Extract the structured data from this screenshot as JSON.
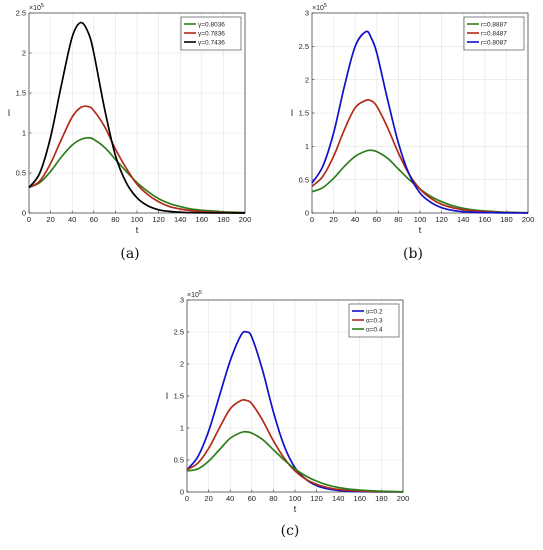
{
  "chart_data": [
    {
      "type": "line",
      "panel_label": "(a)",
      "xlabel": "t",
      "ylabel": "I",
      "xlim": [
        0,
        200
      ],
      "ylim": [
        0,
        2.5
      ],
      "x_ticks": [
        "0",
        "20",
        "40",
        "60",
        "80",
        "100",
        "120",
        "140",
        "160",
        "180",
        "200"
      ],
      "y_ticks": [
        "0",
        "0.5",
        "1",
        "1.5",
        "2",
        "2.5"
      ],
      "y_multiplier": "×10",
      "y_multiplier_exp": "5",
      "grid": true,
      "legend": "top-right",
      "x": [
        0,
        10,
        20,
        30,
        40,
        48,
        55,
        60,
        70,
        80,
        90,
        100,
        110,
        120,
        130,
        140,
        150,
        160,
        170,
        180,
        190,
        200
      ],
      "series": [
        {
          "name": "γ=0.8036",
          "color": "#2e7d1a",
          "values": [
            0.32,
            0.38,
            0.52,
            0.7,
            0.85,
            0.92,
            0.94,
            0.92,
            0.82,
            0.67,
            0.52,
            0.38,
            0.27,
            0.18,
            0.12,
            0.08,
            0.05,
            0.035,
            0.025,
            0.015,
            0.01,
            0.005
          ]
        },
        {
          "name": "γ=0.7836",
          "color": "#b22a18",
          "values": [
            0.32,
            0.4,
            0.62,
            0.92,
            1.2,
            1.32,
            1.33,
            1.28,
            1.08,
            0.8,
            0.56,
            0.36,
            0.23,
            0.14,
            0.08,
            0.05,
            0.03,
            0.018,
            0.01,
            0.006,
            0.003,
            0.002
          ]
        },
        {
          "name": "γ=0.7436",
          "color": "#000000",
          "values": [
            0.32,
            0.5,
            0.95,
            1.6,
            2.2,
            2.38,
            2.25,
            2.0,
            1.3,
            0.72,
            0.38,
            0.19,
            0.09,
            0.04,
            0.02,
            0.01,
            0.005,
            0.003,
            0.002,
            0.001,
            0.0,
            0.0
          ]
        }
      ]
    },
    {
      "type": "line",
      "panel_label": "(b)",
      "xlabel": "t",
      "ylabel": "I",
      "xlim": [
        0,
        200
      ],
      "ylim": [
        0,
        3
      ],
      "x_ticks": [
        "0",
        "20",
        "40",
        "60",
        "80",
        "100",
        "120",
        "140",
        "160",
        "180",
        "200"
      ],
      "y_ticks": [
        "0",
        "0.5",
        "1",
        "1.5",
        "2",
        "2.5",
        "3"
      ],
      "y_multiplier": "×10",
      "y_multiplier_exp": "5",
      "grid": true,
      "legend": "top-right",
      "x": [
        0,
        10,
        20,
        30,
        40,
        50,
        55,
        60,
        70,
        80,
        90,
        100,
        110,
        120,
        130,
        140,
        150,
        160,
        170,
        180,
        190,
        200
      ],
      "series": [
        {
          "name": "r=0.8887",
          "color": "#2e7d1a",
          "values": [
            0.32,
            0.38,
            0.52,
            0.7,
            0.85,
            0.93,
            0.94,
            0.92,
            0.82,
            0.66,
            0.5,
            0.36,
            0.25,
            0.17,
            0.11,
            0.07,
            0.045,
            0.03,
            0.02,
            0.012,
            0.008,
            0.005
          ]
        },
        {
          "name": "r=0.8487",
          "color": "#b22a18",
          "values": [
            0.4,
            0.55,
            0.85,
            1.25,
            1.58,
            1.69,
            1.68,
            1.6,
            1.28,
            0.9,
            0.58,
            0.36,
            0.22,
            0.13,
            0.08,
            0.05,
            0.03,
            0.018,
            0.01,
            0.006,
            0.003,
            0.002
          ]
        },
        {
          "name": "r=0.8087",
          "color": "#1010c8",
          "values": [
            0.45,
            0.7,
            1.2,
            1.9,
            2.5,
            2.72,
            2.62,
            2.4,
            1.7,
            1.05,
            0.58,
            0.3,
            0.16,
            0.08,
            0.04,
            0.02,
            0.01,
            0.006,
            0.004,
            0.002,
            0.001,
            0.0
          ]
        }
      ]
    },
    {
      "type": "line",
      "panel_label": "(c)",
      "xlabel": "t",
      "ylabel": "I",
      "xlim": [
        0,
        200
      ],
      "ylim": [
        0,
        3
      ],
      "x_ticks": [
        "0",
        "20",
        "40",
        "60",
        "80",
        "100",
        "120",
        "140",
        "160",
        "180",
        "200"
      ],
      "y_ticks": [
        "0",
        "0.5",
        "1",
        "1.5",
        "2",
        "2.5",
        "3"
      ],
      "y_multiplier": "×10",
      "y_multiplier_exp": "5",
      "grid": true,
      "legend": "top-right",
      "x": [
        0,
        10,
        20,
        30,
        40,
        50,
        55,
        60,
        70,
        80,
        90,
        100,
        110,
        120,
        130,
        140,
        150,
        160,
        170,
        180,
        190,
        200
      ],
      "series": [
        {
          "name": "α=0.2",
          "color": "#1010c8",
          "values": [
            0.35,
            0.55,
            0.95,
            1.5,
            2.05,
            2.45,
            2.5,
            2.42,
            1.9,
            1.25,
            0.72,
            0.38,
            0.2,
            0.1,
            0.05,
            0.025,
            0.012,
            0.006,
            0.003,
            0.002,
            0.001,
            0.0
          ]
        },
        {
          "name": "α=0.3",
          "color": "#b22a18",
          "values": [
            0.35,
            0.45,
            0.68,
            1.0,
            1.3,
            1.43,
            1.43,
            1.38,
            1.12,
            0.8,
            0.53,
            0.33,
            0.2,
            0.12,
            0.07,
            0.04,
            0.025,
            0.015,
            0.008,
            0.005,
            0.003,
            0.002
          ]
        },
        {
          "name": "α=0.4",
          "color": "#2e7d1a",
          "values": [
            0.33,
            0.36,
            0.48,
            0.66,
            0.84,
            0.93,
            0.94,
            0.92,
            0.82,
            0.66,
            0.5,
            0.36,
            0.25,
            0.17,
            0.11,
            0.07,
            0.045,
            0.03,
            0.02,
            0.012,
            0.008,
            0.005
          ]
        }
      ]
    }
  ]
}
